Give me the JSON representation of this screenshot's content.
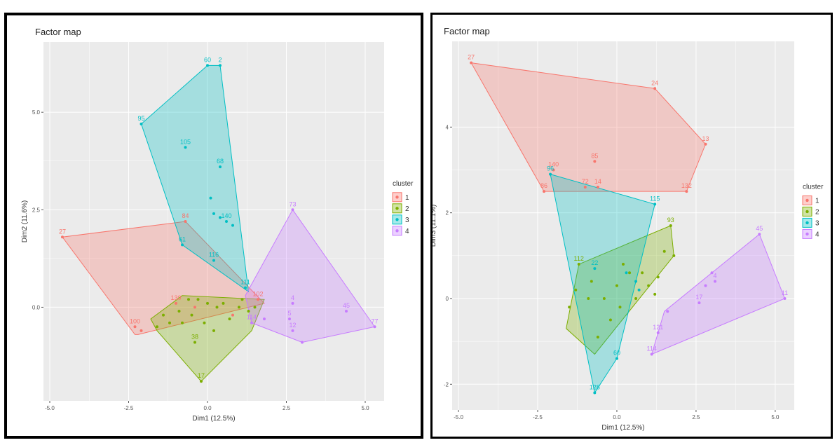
{
  "chart_data": [
    {
      "type": "scatter",
      "title": "Factor map",
      "xlabel": "Dim1 (12.5%)",
      "ylabel": "Dim2 (11.6%)",
      "xlim": [
        -5.2,
        5.6
      ],
      "ylim": [
        -2.4,
        6.8
      ],
      "x_ticks": [
        -5.0,
        -2.5,
        0.0,
        2.5,
        5.0
      ],
      "x_tick_labels": [
        "-5.0",
        "-2.5",
        "0.0",
        "2.5",
        "5.0"
      ],
      "y_ticks": [
        0.0,
        2.5,
        5.0
      ],
      "y_tick_labels": [
        "0.0",
        "2.5",
        "5.0"
      ],
      "grid": true,
      "legend": {
        "title": "cluster",
        "position": "right",
        "entries": [
          "1",
          "2",
          "3",
          "4"
        ]
      },
      "series": [
        {
          "name": "1",
          "color": "#F8766D",
          "hull": [
            [
              -4.6,
              1.8
            ],
            [
              -0.7,
              2.2
            ],
            [
              1.8,
              0.1
            ],
            [
              -2.2,
              -0.7
            ],
            [
              -2.3,
              -0.7
            ]
          ],
          "points": [
            [
              -4.6,
              1.8,
              "27"
            ],
            [
              -0.7,
              2.2,
              "84"
            ],
            [
              -2.3,
              -0.5,
              "100"
            ],
            [
              -2.1,
              -0.6,
              ""
            ],
            [
              -1.0,
              0.1,
              "130"
            ],
            [
              1.6,
              0.2,
              "102"
            ],
            [
              -0.4,
              0.0,
              ""
            ],
            [
              0.8,
              -0.2,
              ""
            ]
          ]
        },
        {
          "name": "2",
          "color": "#7CAE00",
          "hull": [
            [
              -1.8,
              -0.3
            ],
            [
              -0.8,
              0.3
            ],
            [
              1.8,
              0.2
            ],
            [
              1.4,
              -0.6
            ],
            [
              -0.2,
              -1.9
            ],
            [
              -1.6,
              -0.6
            ]
          ],
          "points": [
            [
              -0.2,
              -1.9,
              "17"
            ],
            [
              -0.4,
              -0.9,
              "38"
            ],
            [
              -1.6,
              -0.5,
              ""
            ],
            [
              -1.2,
              -0.4,
              ""
            ],
            [
              -0.8,
              -0.4,
              ""
            ],
            [
              -0.6,
              0.2,
              ""
            ],
            [
              -0.3,
              0.2,
              ""
            ],
            [
              0.0,
              0.1,
              ""
            ],
            [
              0.3,
              0.0,
              ""
            ],
            [
              0.5,
              0.1,
              ""
            ],
            [
              1.0,
              0.0,
              ""
            ],
            [
              1.3,
              -0.1,
              ""
            ],
            [
              1.5,
              0.0,
              ""
            ],
            [
              -1.4,
              -0.2,
              ""
            ],
            [
              0.7,
              -0.3,
              ""
            ],
            [
              -0.1,
              -0.4,
              ""
            ],
            [
              0.2,
              -0.6,
              ""
            ],
            [
              -0.9,
              -0.1,
              ""
            ],
            [
              1.1,
              0.2,
              ""
            ],
            [
              -0.5,
              -0.2,
              ""
            ]
          ]
        },
        {
          "name": "3",
          "color": "#00BFC4",
          "hull": [
            [
              -2.1,
              4.7
            ],
            [
              0.0,
              6.2
            ],
            [
              0.4,
              6.2
            ],
            [
              1.3,
              0.4
            ],
            [
              -0.8,
              1.6
            ]
          ],
          "points": [
            [
              -2.1,
              4.7,
              "95"
            ],
            [
              0.0,
              6.2,
              "60"
            ],
            [
              0.4,
              6.2,
              "2"
            ],
            [
              -0.7,
              4.1,
              "105"
            ],
            [
              0.4,
              3.6,
              "68"
            ],
            [
              0.1,
              2.8,
              ""
            ],
            [
              0.2,
              2.4,
              ""
            ],
            [
              0.4,
              2.3,
              ""
            ],
            [
              0.6,
              2.2,
              "140"
            ],
            [
              0.8,
              2.1,
              ""
            ],
            [
              0.2,
              1.2,
              "116"
            ],
            [
              1.2,
              0.5,
              "111"
            ],
            [
              -0.8,
              1.6,
              "61"
            ]
          ]
        },
        {
          "name": "4",
          "color": "#C77CFF",
          "hull": [
            [
              2.7,
              2.5
            ],
            [
              5.3,
              -0.5
            ],
            [
              3.0,
              -0.9
            ],
            [
              1.4,
              -0.4
            ],
            [
              1.2,
              0.3
            ]
          ],
          "points": [
            [
              2.7,
              2.5,
              "73"
            ],
            [
              4.4,
              -0.1,
              "45"
            ],
            [
              5.3,
              -0.5,
              "77"
            ],
            [
              3.0,
              -0.9,
              ""
            ],
            [
              2.7,
              -0.6,
              "12"
            ],
            [
              2.7,
              0.1,
              "4"
            ],
            [
              1.4,
              -0.4,
              "114"
            ],
            [
              2.6,
              -0.3,
              "5"
            ],
            [
              1.8,
              -0.3,
              ""
            ]
          ]
        }
      ]
    },
    {
      "type": "scatter",
      "title": "Factor map",
      "xlabel": "Dim1 (12.5%)",
      "ylabel": "Dim3 (11.1%)",
      "xlim": [
        -5.2,
        5.6
      ],
      "ylim": [
        -2.6,
        6.0
      ],
      "x_ticks": [
        -5.0,
        -2.5,
        0.0,
        2.5,
        5.0
      ],
      "x_tick_labels": [
        "-5.0",
        "-2.5",
        "0.0",
        "2.5",
        "5.0"
      ],
      "y_ticks": [
        -2,
        0,
        2,
        4
      ],
      "y_tick_labels": [
        "-2",
        "0",
        "2",
        "4"
      ],
      "grid": true,
      "legend": {
        "title": "cluster",
        "position": "right",
        "entries": [
          "1",
          "2",
          "3",
          "4"
        ]
      },
      "series": [
        {
          "name": "1",
          "color": "#F8766D",
          "hull": [
            [
              -4.6,
              5.5
            ],
            [
              1.2,
              4.9
            ],
            [
              2.8,
              3.6
            ],
            [
              2.2,
              2.5
            ],
            [
              -2.3,
              2.5
            ]
          ],
          "points": [
            [
              -4.6,
              5.5,
              "27"
            ],
            [
              1.2,
              4.9,
              "24"
            ],
            [
              2.8,
              3.6,
              "13"
            ],
            [
              2.2,
              2.5,
              "132"
            ],
            [
              -2.3,
              2.5,
              "86"
            ],
            [
              -2.0,
              3.0,
              "140"
            ],
            [
              -0.7,
              3.2,
              "85"
            ],
            [
              -1.0,
              2.6,
              "72"
            ],
            [
              -0.6,
              2.6,
              "14"
            ]
          ]
        },
        {
          "name": "2",
          "color": "#7CAE00",
          "hull": [
            [
              -1.6,
              -0.7
            ],
            [
              -1.2,
              0.8
            ],
            [
              1.7,
              1.7
            ],
            [
              1.8,
              1.0
            ],
            [
              -0.7,
              -1.3
            ]
          ],
          "points": [
            [
              -1.2,
              0.8,
              "112"
            ],
            [
              1.7,
              1.7,
              "93"
            ],
            [
              -1.5,
              -0.2,
              ""
            ],
            [
              -1.3,
              0.2,
              ""
            ],
            [
              -0.8,
              0.4,
              ""
            ],
            [
              -0.4,
              0.0,
              ""
            ],
            [
              -0.2,
              -0.5,
              ""
            ],
            [
              0.0,
              0.3,
              ""
            ],
            [
              0.2,
              0.8,
              ""
            ],
            [
              0.4,
              0.6,
              ""
            ],
            [
              0.6,
              0.0,
              ""
            ],
            [
              1.0,
              0.3,
              ""
            ],
            [
              1.3,
              0.5,
              ""
            ],
            [
              1.5,
              1.1,
              ""
            ],
            [
              1.8,
              1.0,
              ""
            ],
            [
              -0.6,
              -0.9,
              ""
            ],
            [
              0.1,
              -0.2,
              ""
            ],
            [
              0.8,
              0.6,
              ""
            ],
            [
              1.2,
              0.1,
              ""
            ],
            [
              -0.9,
              0.0,
              ""
            ]
          ]
        },
        {
          "name": "3",
          "color": "#00BFC4",
          "hull": [
            [
              -2.1,
              2.9
            ],
            [
              1.2,
              2.2
            ],
            [
              0.0,
              -1.4
            ],
            [
              -0.7,
              -2.2
            ]
          ],
          "points": [
            [
              -2.1,
              2.9,
              "96"
            ],
            [
              1.2,
              2.2,
              "115"
            ],
            [
              -0.7,
              -2.2,
              "128"
            ],
            [
              0.0,
              -1.4,
              "60"
            ],
            [
              0.3,
              0.6,
              ""
            ],
            [
              0.6,
              0.4,
              ""
            ],
            [
              0.7,
              0.2,
              ""
            ],
            [
              -0.7,
              0.7,
              "22"
            ]
          ]
        },
        {
          "name": "4",
          "color": "#C77CFF",
          "hull": [
            [
              4.5,
              1.5
            ],
            [
              5.3,
              0.0
            ],
            [
              1.1,
              -1.3
            ],
            [
              1.5,
              -0.3
            ]
          ],
          "points": [
            [
              4.5,
              1.5,
              "45"
            ],
            [
              5.3,
              0.0,
              "11"
            ],
            [
              1.1,
              -1.3,
              "114"
            ],
            [
              1.3,
              -0.8,
              "121"
            ],
            [
              1.6,
              -0.3,
              ""
            ],
            [
              2.8,
              0.3,
              ""
            ],
            [
              3.1,
              0.4,
              "4"
            ],
            [
              2.6,
              -0.1,
              "17"
            ],
            [
              3.0,
              0.6,
              ""
            ]
          ]
        }
      ]
    }
  ]
}
